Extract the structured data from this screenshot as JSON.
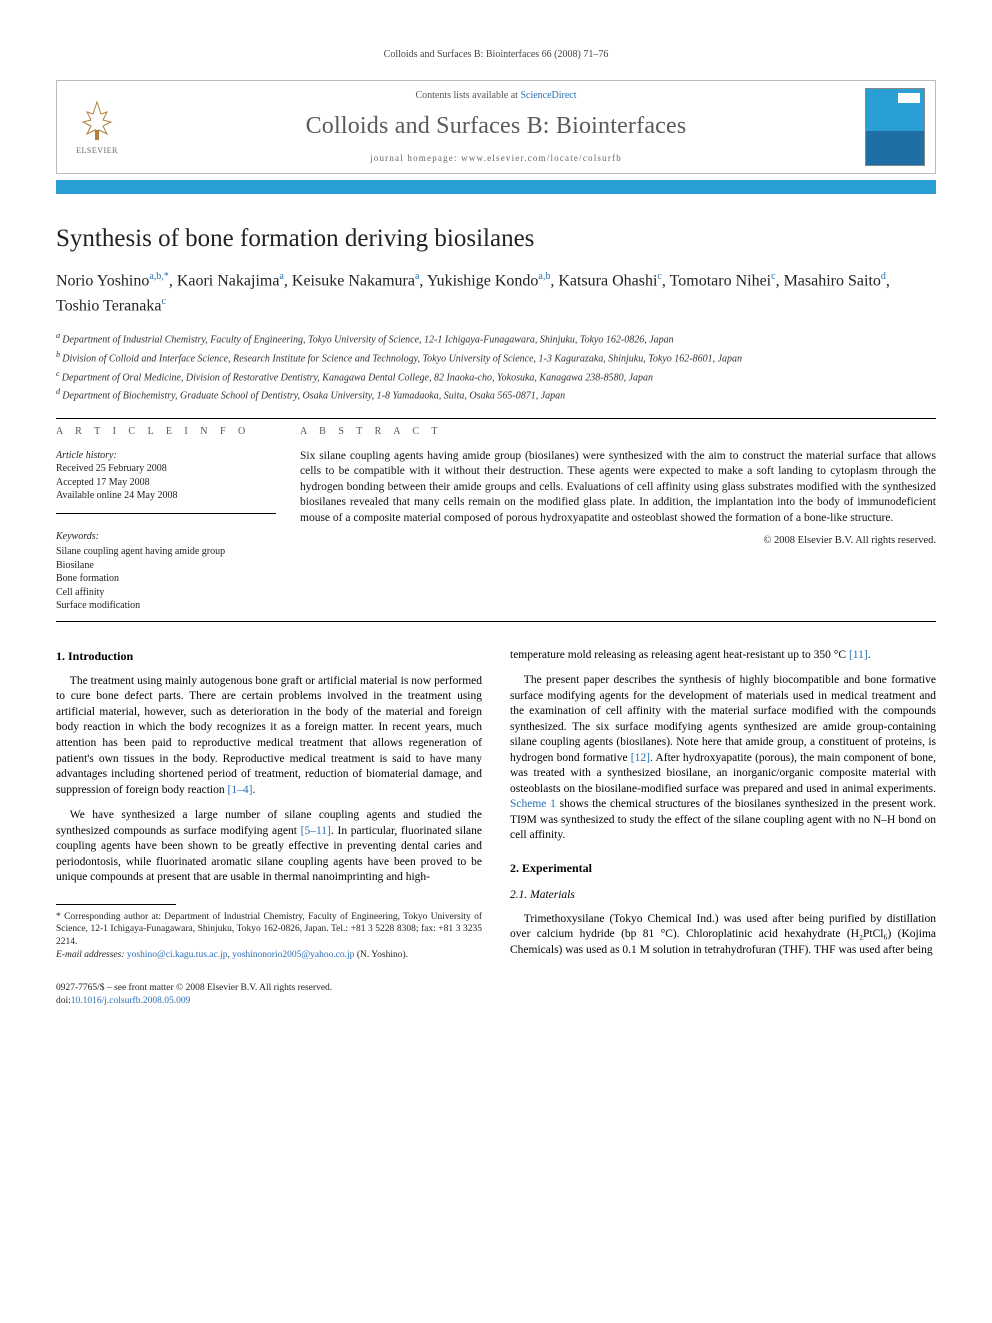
{
  "running_head": "Colloids and Surfaces B: Biointerfaces 66 (2008) 71–76",
  "masthead": {
    "contents_prefix": "Contents lists available at ",
    "contents_link": "ScienceDirect",
    "journal": "Colloids and Surfaces B: Biointerfaces",
    "homepage_label": "journal homepage: ",
    "homepage_url": "www.elsevier.com/locate/colsurfb",
    "publisher_label": "ELSEVIER"
  },
  "title": "Synthesis of bone formation deriving biosilanes",
  "authors_html": "Norio Yoshino<sup>a,b,*</sup>, Kaori Nakajima<sup>a</sup>, Keisuke Nakamura<sup>a</sup>, Yukishige Kondo<sup>a,b</sup>, Katsura Ohashi<sup>c</sup>, Tomotaro Nihei<sup>c</sup>, Masahiro Saito<sup>d</sup>, Toshio Teranaka<sup>c</sup>",
  "affiliations": [
    "a Department of Industrial Chemistry, Faculty of Engineering, Tokyo University of Science, 12-1 Ichigaya-Funagawara, Shinjuku, Tokyo 162-0826, Japan",
    "b Division of Colloid and Interface Science, Research Institute for Science and Technology, Tokyo University of Science, 1-3 Kagurazaka, Shinjuku, Tokyo 162-8601, Japan",
    "c Department of Oral Medicine, Division of Restorative Dentistry, Kanagawa Dental College, 82 Inaoka-cho, Yokosuka, Kanagawa 238-8580, Japan",
    "d Department of Biochemistry, Graduate School of Dentistry, Osaka University, 1-8 Yamadaoka, Suita, Osaka 565-0871, Japan"
  ],
  "article_info": {
    "label": "A R T I C L E   I N F O",
    "history_title": "Article history:",
    "received": "Received 25 February 2008",
    "accepted": "Accepted 17 May 2008",
    "online": "Available online 24 May 2008",
    "keywords_title": "Keywords:",
    "keywords": [
      "Silane coupling agent having amide group",
      "Biosilane",
      "Bone formation",
      "Cell affinity",
      "Surface modification"
    ]
  },
  "abstract": {
    "label": "A B S T R A C T",
    "text": "Six silane coupling agents having amide group (biosilanes) were synthesized with the aim to construct the material surface that allows cells to be compatible with it without their destruction. These agents were expected to make a soft landing to cytoplasm through the hydrogen bonding between their amide groups and cells. Evaluations of cell affinity using glass substrates modified with the synthesized biosilanes revealed that many cells remain on the modified glass plate. In addition, the implantation into the body of immunodeficient mouse of a composite material composed of porous hydroxyapatite and osteoblast showed the formation of a bone-like structure.",
    "copyright": "© 2008 Elsevier B.V. All rights reserved."
  },
  "body": {
    "intro_heading": "1. Introduction",
    "intro_p1": "The treatment using mainly autogenous bone graft or artificial material is now performed to cure bone defect parts. There are certain problems involved in the treatment using artificial material, however, such as deterioration in the body of the material and foreign body reaction in which the body recognizes it as a foreign matter. In recent years, much attention has been paid to reproductive medical treatment that allows regeneration of patient's own tissues in the body. Reproductive medical treatment is said to have many advantages including shortened period of treatment, reduction of biomaterial damage, and suppression of foreign body reaction ",
    "intro_ref1": "[1–4]",
    "intro_p1_tail": ".",
    "intro_p2": "We have synthesized a large number of silane coupling agents and studied the synthesized compounds as surface modifying agent ",
    "intro_ref2": "[5–11]",
    "intro_p2_mid": ". In particular, fluorinated silane coupling agents have been shown to be greatly effective in preventing dental caries and periodontosis, while fluorinated aromatic silane coupling agents have been proved to be unique compounds at present that are usable in thermal nanoimprinting and high-",
    "col2_top": "temperature mold releasing as releasing agent heat-resistant up to 350 °C ",
    "intro_ref3": "[11]",
    "col2_top_tail": ".",
    "intro_p3a": "The present paper describes the synthesis of highly biocompatible and bone formative surface modifying agents for the development of materials used in medical treatment and the examination of cell affinity with the material surface modified with the compounds synthesized. The six surface modifying agents synthesized are amide group-containing silane coupling agents (biosilanes). Note here that amide group, a constituent of proteins, is hydrogen bond formative ",
    "intro_ref4": "[12]",
    "intro_p3b": ". After hydroxyapatite (porous), the main component of bone, was treated with a synthesized biosilane, an inorganic/organic composite material with osteoblasts on the biosilane-modified surface was prepared and used in animal experiments. ",
    "scheme_ref": "Scheme 1",
    "intro_p3c": " shows the chemical structures of the biosilanes synthesized in the present work. TI9M was synthesized to study the effect of the silane coupling agent with no N–H bond on cell affinity.",
    "exp_heading": "2. Experimental",
    "materials_heading": "2.1. Materials",
    "materials_p1": "Trimethoxysilane (Tokyo Chemical Ind.) was used after being purified by distillation over calcium hydride (bp 81 °C). Chloroplatinic acid hexahydrate (H₂PtCl₆) (Kojima Chemicals) was used as 0.1 M solution in tetrahydrofuran (THF). THF was used after being"
  },
  "footnotes": {
    "corr": "* Corresponding author at: Department of Industrial Chemistry, Faculty of Engineering, Tokyo University of Science, 12-1 Ichigaya-Funagawara, Shinjuku, Tokyo 162-0826, Japan. Tel.: +81 3 5228 8308; fax: +81 3 3235 2214.",
    "email_label": "E-mail addresses: ",
    "email1": "yoshino@ci.kagu.tus.ac.jp",
    "email_sep": ", ",
    "email2": "yoshinonorio2005@yahoo.co.jp",
    "email_tail": " (N. Yoshino)."
  },
  "bottom": {
    "issn_line": "0927-7765/$ – see front matter © 2008 Elsevier B.V. All rights reserved.",
    "doi_label": "doi:",
    "doi": "10.1016/j.colsurfb.2008.05.009"
  },
  "colors": {
    "link": "#2a6fb5",
    "bar": "#2a9fd6"
  }
}
